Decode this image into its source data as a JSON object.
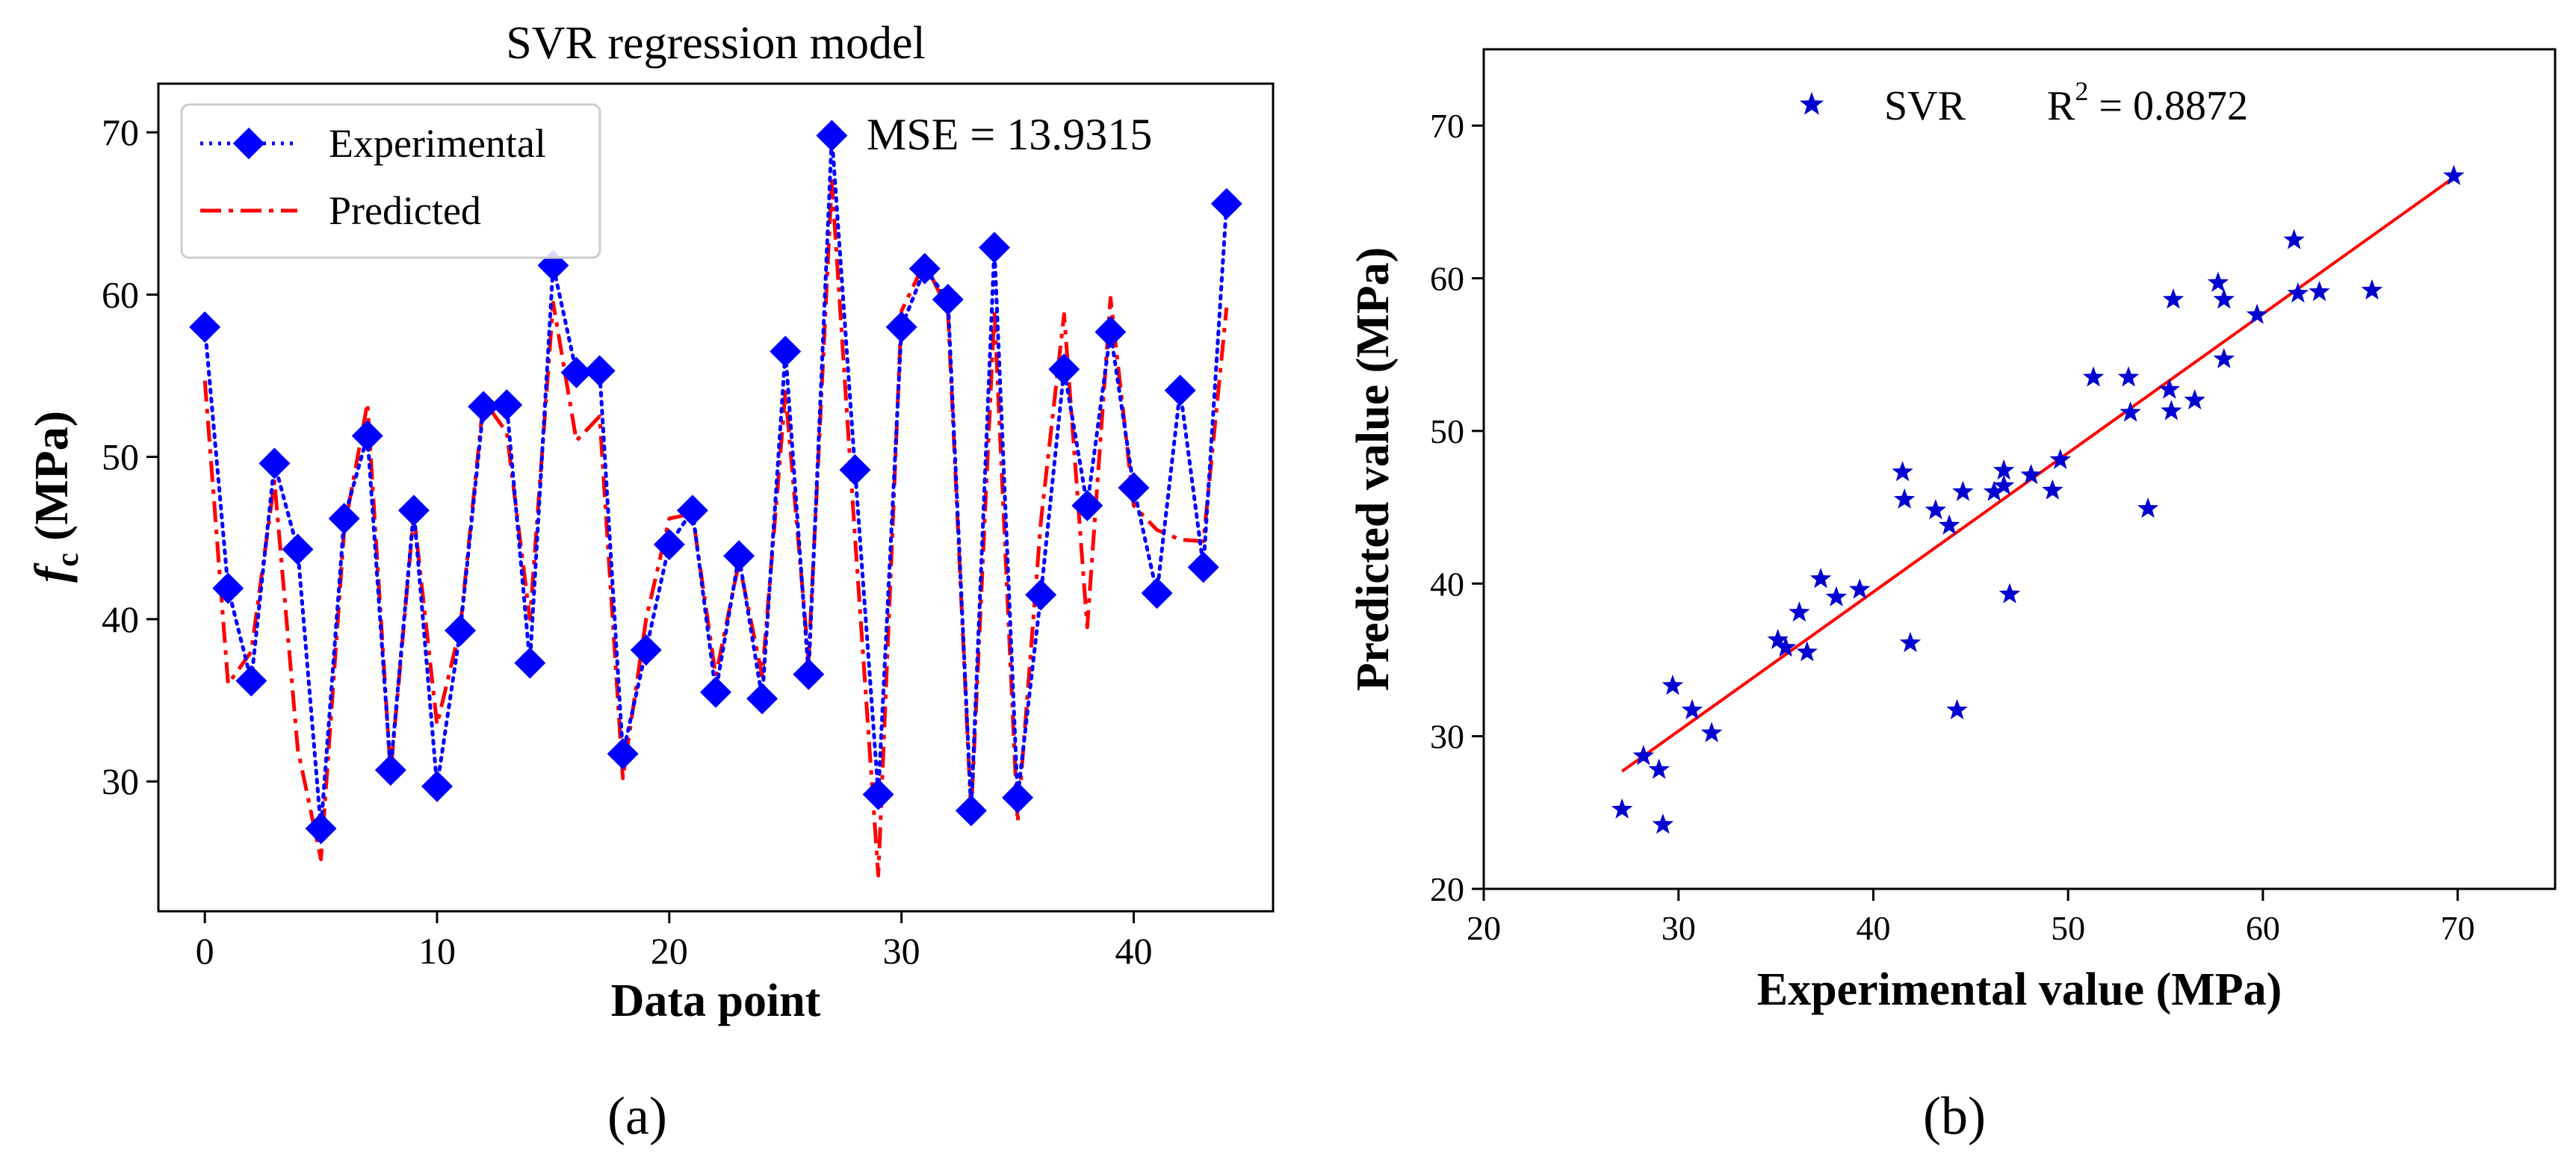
{
  "panels": [
    {
      "label": "(a)",
      "title": "SVR regression model",
      "annotation": "MSE = 13.9315",
      "ylabel_main": "f",
      "ylabel_sub": "c",
      "ylabel_unit": " (MPa)"
    },
    {
      "label": "(b)",
      "annotation_r2_base": "R",
      "annotation_r2_sup": "2",
      "annotation_r2_value": " = 0.8872"
    }
  ],
  "colors": {
    "experimental": "#0000ff",
    "predicted": "#ff0000",
    "scatter": "#0000d0",
    "fit_line": "#ff0000",
    "axis": "#000000"
  },
  "chart_data": [
    {
      "type": "line",
      "title": "SVR regression model",
      "xlabel": "Data point",
      "ylabel": "f_c (MPa)",
      "xlim": [
        -2,
        46
      ],
      "ylim": [
        22,
        73
      ],
      "xticks": [
        0,
        10,
        20,
        30,
        40
      ],
      "yticks": [
        30,
        40,
        50,
        60,
        70
      ],
      "legend_position": "top-left",
      "grid": false,
      "x": [
        0,
        1,
        2,
        3,
        4,
        5,
        6,
        7,
        8,
        9,
        10,
        11,
        12,
        13,
        14,
        15,
        16,
        17,
        18,
        19,
        20,
        21,
        22,
        23,
        24,
        25,
        26,
        27,
        28,
        29,
        30,
        31,
        32,
        33,
        34,
        35,
        36,
        37,
        38,
        39,
        40,
        41,
        42,
        43,
        44
      ],
      "series": [
        {
          "name": "Experimental",
          "style": "dotted-diamond",
          "values": [
            58.0,
            41.9,
            36.2,
            49.6,
            44.3,
            27.1,
            46.2,
            51.3,
            30.7,
            46.7,
            29.7,
            39.3,
            53.1,
            53.2,
            37.3,
            61.8,
            55.2,
            55.3,
            31.7,
            38.1,
            44.6,
            46.7,
            35.5,
            43.9,
            35.1,
            56.5,
            36.6,
            69.8,
            49.2,
            29.2,
            58.0,
            61.6,
            59.7,
            28.2,
            62.9,
            29.0,
            41.5,
            55.4,
            47.0,
            57.7,
            48.1,
            41.6,
            54.1,
            43.2,
            65.6
          ]
        },
        {
          "name": "Predicted",
          "style": "dash-dot",
          "values": [
            54.7,
            36.0,
            38.0,
            48.5,
            32.0,
            25.2,
            45.5,
            53.3,
            30.5,
            46.5,
            33.5,
            39.5,
            53.5,
            51.5,
            40.0,
            59.5,
            51.0,
            52.5,
            30.2,
            40.0,
            46.2,
            46.5,
            36.5,
            43.5,
            36.5,
            54.0,
            37.5,
            67.0,
            45.0,
            24.2,
            59.0,
            62.0,
            59.0,
            28.0,
            59.0,
            27.5,
            46.0,
            58.8,
            39.5,
            59.8,
            47.0,
            45.5,
            44.9,
            44.8,
            59.2
          ]
        }
      ]
    },
    {
      "type": "scatter",
      "xlabel": "Experimental value (MPa)",
      "ylabel": "Predicted value (MPa)",
      "xlim": [
        20,
        75
      ],
      "ylim": [
        20,
        75
      ],
      "xticks": [
        20,
        30,
        40,
        50,
        60,
        70
      ],
      "yticks": [
        20,
        30,
        40,
        50,
        60,
        70
      ],
      "legend_position": "top-center",
      "grid": false,
      "series": [
        {
          "name": "SVR",
          "marker": "star",
          "points": [
            [
              27.1,
              25.2
            ],
            [
              28.2,
              28.7
            ],
            [
              29.0,
              27.8
            ],
            [
              29.2,
              24.2
            ],
            [
              29.7,
              33.3
            ],
            [
              30.7,
              31.7
            ],
            [
              31.7,
              30.2
            ],
            [
              35.1,
              36.3
            ],
            [
              35.5,
              35.8
            ],
            [
              36.2,
              38.1
            ],
            [
              36.6,
              35.5
            ],
            [
              37.3,
              40.3
            ],
            [
              38.1,
              39.1
            ],
            [
              39.3,
              39.6
            ],
            [
              41.5,
              47.3
            ],
            [
              41.6,
              45.5
            ],
            [
              41.9,
              36.1
            ],
            [
              43.2,
              44.8
            ],
            [
              43.9,
              43.8
            ],
            [
              44.3,
              31.7
            ],
            [
              44.6,
              46.0
            ],
            [
              46.2,
              46.0
            ],
            [
              46.7,
              46.4
            ],
            [
              46.7,
              47.4
            ],
            [
              47.0,
              39.3
            ],
            [
              48.1,
              47.1
            ],
            [
              49.2,
              46.1
            ],
            [
              49.6,
              48.1
            ],
            [
              51.3,
              53.5
            ],
            [
              53.1,
              53.5
            ],
            [
              53.2,
              51.2
            ],
            [
              54.1,
              44.9
            ],
            [
              55.2,
              52.7
            ],
            [
              55.3,
              51.3
            ],
            [
              55.4,
              58.6
            ],
            [
              56.5,
              52.0
            ],
            [
              57.7,
              59.7
            ],
            [
              58.0,
              58.6
            ],
            [
              58.0,
              54.7
            ],
            [
              59.7,
              57.6
            ],
            [
              61.6,
              62.5
            ],
            [
              61.8,
              59.0
            ],
            [
              62.9,
              59.1
            ],
            [
              65.6,
              59.2
            ],
            [
              69.8,
              66.7
            ]
          ]
        }
      ],
      "fit_line": {
        "x": [
          27.1,
          69.8
        ],
        "y": [
          27.7,
          66.6
        ]
      }
    }
  ]
}
